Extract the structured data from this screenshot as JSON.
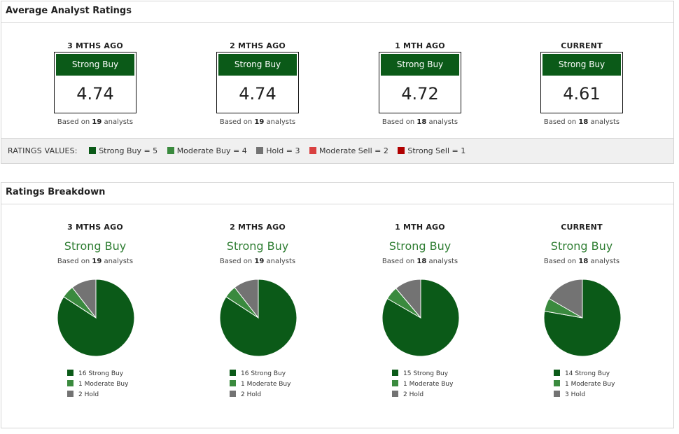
{
  "colors": {
    "strong_buy": "#0b5a18",
    "moderate_buy": "#3a8a3e",
    "hold": "#737373",
    "moderate_sell": "#d94040",
    "strong_sell": "#b00000"
  },
  "average": {
    "title": "Average Analyst Ratings",
    "columns": [
      {
        "period": "3 MTHS AGO",
        "rating": "Strong Buy",
        "score": "4.74",
        "based_prefix": "Based on",
        "analysts": "19",
        "based_suffix": "analysts"
      },
      {
        "period": "2 MTHS AGO",
        "rating": "Strong Buy",
        "score": "4.74",
        "based_prefix": "Based on",
        "analysts": "19",
        "based_suffix": "analysts"
      },
      {
        "period": "1 MTH AGO",
        "rating": "Strong Buy",
        "score": "4.72",
        "based_prefix": "Based on",
        "analysts": "18",
        "based_suffix": "analysts"
      },
      {
        "period": "CURRENT",
        "rating": "Strong Buy",
        "score": "4.61",
        "based_prefix": "Based on",
        "analysts": "18",
        "based_suffix": "analysts"
      }
    ],
    "values_label": "RATINGS VALUES:",
    "values": [
      {
        "label": "Strong Buy = 5",
        "color": "#0b5a18"
      },
      {
        "label": "Moderate Buy = 4",
        "color": "#3a8a3e"
      },
      {
        "label": "Hold = 3",
        "color": "#737373"
      },
      {
        "label": "Moderate Sell = 2",
        "color": "#d94040"
      },
      {
        "label": "Strong Sell = 1",
        "color": "#b00000"
      }
    ]
  },
  "breakdown": {
    "title": "Ratings Breakdown",
    "columns": [
      {
        "period": "3 MTHS AGO",
        "rating": "Strong Buy",
        "based_prefix": "Based on",
        "analysts": "19",
        "based_suffix": "analysts",
        "legend": [
          "16 Strong Buy",
          "1 Moderate Buy",
          "2 Hold"
        ]
      },
      {
        "period": "2 MTHS AGO",
        "rating": "Strong Buy",
        "based_prefix": "Based on",
        "analysts": "19",
        "based_suffix": "analysts",
        "legend": [
          "16 Strong Buy",
          "1 Moderate Buy",
          "2 Hold"
        ]
      },
      {
        "period": "1 MTH AGO",
        "rating": "Strong Buy",
        "based_prefix": "Based on",
        "analysts": "18",
        "based_suffix": "analysts",
        "legend": [
          "15 Strong Buy",
          "1 Moderate Buy",
          "2 Hold"
        ]
      },
      {
        "period": "CURRENT",
        "rating": "Strong Buy",
        "based_prefix": "Based on",
        "analysts": "18",
        "based_suffix": "analysts",
        "legend": [
          "14 Strong Buy",
          "1 Moderate Buy",
          "3 Hold"
        ]
      }
    ]
  },
  "chart_data": [
    {
      "type": "pie",
      "title": "3 MTHS AGO",
      "labels": [
        "Strong Buy",
        "Moderate Buy",
        "Hold"
      ],
      "values": [
        16,
        1,
        2
      ],
      "colors": [
        "#0b5a18",
        "#3a8a3e",
        "#737373"
      ]
    },
    {
      "type": "pie",
      "title": "2 MTHS AGO",
      "labels": [
        "Strong Buy",
        "Moderate Buy",
        "Hold"
      ],
      "values": [
        16,
        1,
        2
      ],
      "colors": [
        "#0b5a18",
        "#3a8a3e",
        "#737373"
      ]
    },
    {
      "type": "pie",
      "title": "1 MTH AGO",
      "labels": [
        "Strong Buy",
        "Moderate Buy",
        "Hold"
      ],
      "values": [
        15,
        1,
        2
      ],
      "colors": [
        "#0b5a18",
        "#3a8a3e",
        "#737373"
      ]
    },
    {
      "type": "pie",
      "title": "CURRENT",
      "labels": [
        "Strong Buy",
        "Moderate Buy",
        "Hold"
      ],
      "values": [
        14,
        1,
        3
      ],
      "colors": [
        "#0b5a18",
        "#3a8a3e",
        "#737373"
      ]
    }
  ]
}
